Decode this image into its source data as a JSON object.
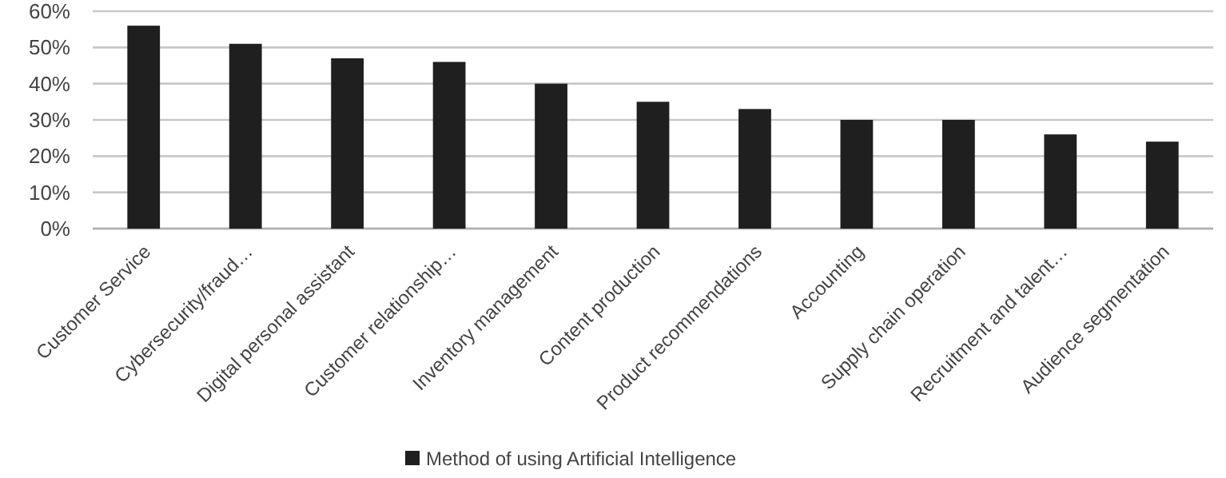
{
  "chart_data": {
    "type": "bar",
    "categories": [
      "Customer Service",
      "Cybersecurity/fraud…",
      "Digital personal assistant",
      "Customer relationship…",
      "Inventory management",
      "Content production",
      "Product recommendations",
      "Accounting",
      "Supply chain operation",
      "Recruitment and talent…",
      "Audience segmentation"
    ],
    "series": [
      {
        "name": "Method of using Artificial Intelligence",
        "color": "#1f1f1f",
        "values": [
          56,
          51,
          47,
          46,
          40,
          35,
          33,
          30,
          30,
          26,
          24
        ]
      }
    ],
    "ylim": [
      0,
      60
    ],
    "yticks": [
      {
        "value": 0,
        "label": "0%"
      },
      {
        "value": 10,
        "label": "10%"
      },
      {
        "value": 20,
        "label": "20%"
      },
      {
        "value": 30,
        "label": "30%"
      },
      {
        "value": 40,
        "label": "40%"
      },
      {
        "value": 50,
        "label": "50%"
      },
      {
        "value": 60,
        "label": "60%"
      }
    ],
    "grid": "y",
    "legend": "bottom"
  }
}
